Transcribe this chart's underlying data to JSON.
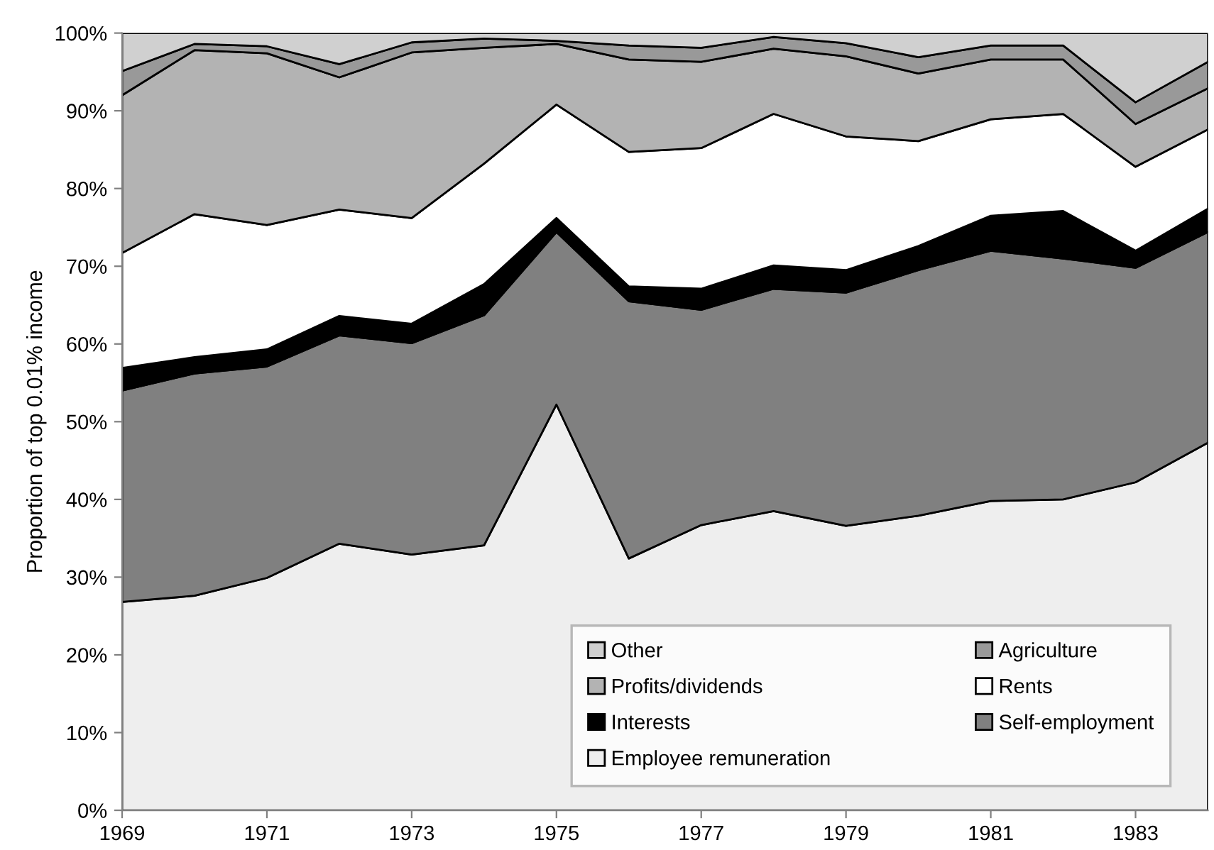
{
  "chart_data": {
    "type": "area",
    "stacked": true,
    "ylabel": "Proportion of top 0.01% income",
    "x": [
      1969,
      1970,
      1971,
      1972,
      1973,
      1974,
      1975,
      1976,
      1977,
      1978,
      1979,
      1980,
      1981,
      1982,
      1983,
      1984
    ],
    "xlim": [
      1969,
      1984
    ],
    "xticks": [
      1969,
      1971,
      1973,
      1975,
      1977,
      1979,
      1981,
      1983
    ],
    "ylim": [
      0,
      100
    ],
    "yticks": [
      {
        "value": 0,
        "label": "0%"
      },
      {
        "value": 10,
        "label": "10%"
      },
      {
        "value": 20,
        "label": "20%"
      },
      {
        "value": 30,
        "label": "30%"
      },
      {
        "value": 40,
        "label": "40%"
      },
      {
        "value": 50,
        "label": "50%"
      },
      {
        "value": 60,
        "label": "60%"
      },
      {
        "value": 70,
        "label": "70%"
      },
      {
        "value": 80,
        "label": "80%"
      },
      {
        "value": 90,
        "label": "90%"
      },
      {
        "value": 100,
        "label": "100%"
      }
    ],
    "grid": false,
    "legend": "bottom right",
    "series": [
      {
        "name": "Employee remuneration",
        "color": "#eeeeee",
        "values": [
          26.8,
          27.6,
          29.9,
          34.3,
          32.9,
          34.1,
          52.2,
          32.4,
          36.7,
          38.5,
          36.6,
          37.9,
          39.8,
          40.0,
          42.2,
          47.3
        ]
      },
      {
        "name": "Self-employment",
        "color": "#808080",
        "values": [
          27.2,
          28.6,
          27.2,
          26.8,
          27.2,
          29.6,
          22.2,
          33.1,
          27.7,
          28.6,
          30.0,
          31.6,
          32.2,
          31.0,
          27.6,
          27.1
        ]
      },
      {
        "name": "Interests",
        "color": "#000000",
        "values": [
          2.9,
          2.1,
          2.2,
          2.5,
          2.5,
          4.0,
          1.8,
          1.9,
          2.7,
          3.0,
          2.9,
          3.1,
          4.5,
          6.1,
          2.2,
          3.0
        ]
      },
      {
        "name": "Rents",
        "color": "#ffffff",
        "values": [
          14.8,
          18.4,
          16.0,
          13.7,
          13.6,
          15.5,
          14.6,
          17.3,
          18.1,
          19.5,
          17.2,
          13.5,
          12.4,
          12.5,
          10.8,
          10.2
        ]
      },
      {
        "name": "Profits/dividends",
        "color": "#b3b3b3",
        "values": [
          20.3,
          21.1,
          22.1,
          17.0,
          21.3,
          14.9,
          7.8,
          11.9,
          11.1,
          8.4,
          10.3,
          8.7,
          7.7,
          7.0,
          5.5,
          5.3
        ]
      },
      {
        "name": "Agriculture",
        "color": "#999999",
        "values": [
          3.1,
          0.8,
          0.9,
          1.7,
          1.3,
          1.2,
          0.4,
          1.8,
          1.8,
          1.5,
          1.7,
          2.1,
          1.8,
          1.8,
          2.8,
          3.4
        ]
      },
      {
        "name": "Other",
        "color": "#d0d0d0",
        "values": [
          4.9,
          1.4,
          1.7,
          4.0,
          1.2,
          0.7,
          1.0,
          1.6,
          1.9,
          0.5,
          1.3,
          3.1,
          1.6,
          1.6,
          8.9,
          3.7
        ]
      }
    ]
  }
}
